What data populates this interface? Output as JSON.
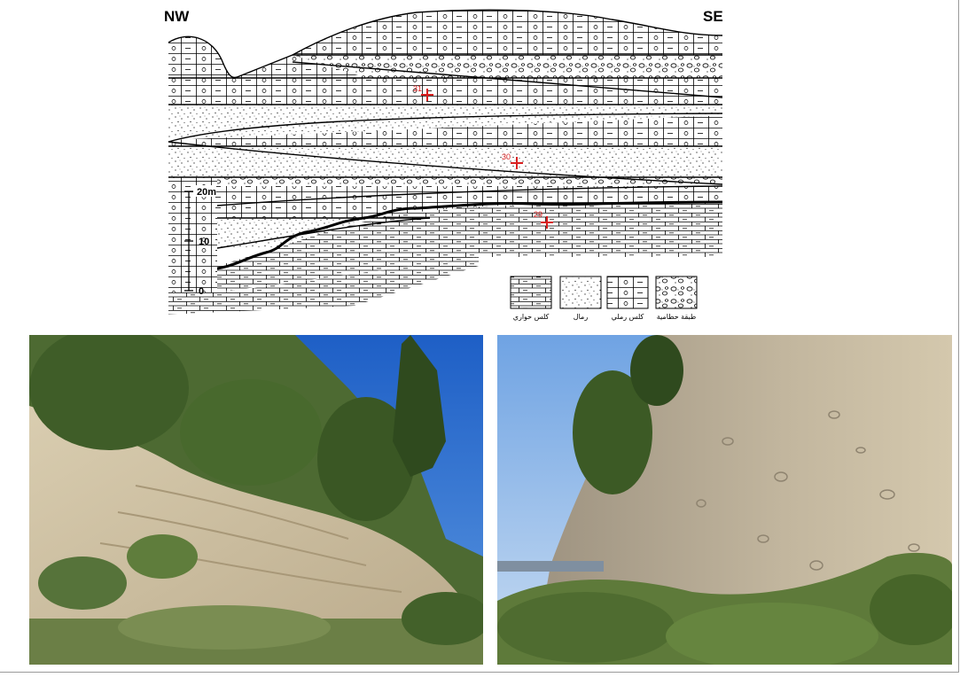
{
  "section": {
    "direction_left": "NW",
    "direction_right": "SE",
    "scale": {
      "ticks": [
        "20m",
        "10",
        "0"
      ]
    },
    "samples": [
      {
        "id": "31",
        "label": "31"
      },
      {
        "id": "30",
        "label": "30"
      },
      {
        "id": "29",
        "label": "29"
      }
    ],
    "legend": [
      {
        "key": "marly-limestone",
        "label": "كلس حواري"
      },
      {
        "key": "sands",
        "label": "رمال"
      },
      {
        "key": "sandy-limestone",
        "label": "كلس رملي"
      },
      {
        "key": "conglomerate",
        "label": "طبقة حطامية"
      }
    ],
    "colors": {
      "sample_marker": "#d81e1e",
      "line": "#000000"
    }
  },
  "photos": [
    {
      "id": "left",
      "subject": "vegetated outcrop slope with layered pale sediment"
    },
    {
      "id": "right",
      "subject": "close view of coarse conglomeratic outcrop face"
    }
  ]
}
